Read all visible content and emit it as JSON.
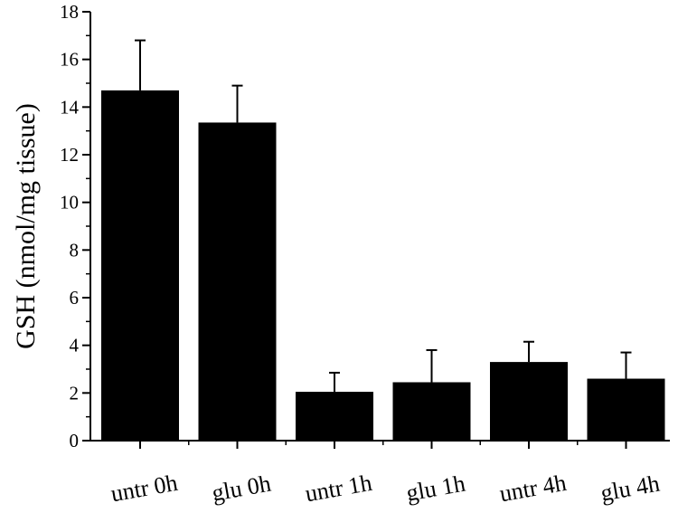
{
  "chart_data": {
    "type": "bar",
    "title": "",
    "xlabel": "",
    "ylabel": "GSH (nmol/mg tissue)",
    "categories": [
      "untr 0h",
      "glu 0h",
      "untr 1h",
      "glu 1h",
      "untr 4h",
      "glu 4h"
    ],
    "values": [
      14.7,
      13.35,
      2.05,
      2.45,
      3.3,
      2.6
    ],
    "error_plus": [
      2.1,
      1.55,
      0.8,
      1.35,
      0.85,
      1.1
    ],
    "ylim": [
      0,
      18
    ],
    "yticks": [
      0,
      2,
      4,
      6,
      8,
      10,
      12,
      14,
      16,
      18
    ],
    "ytick_labels": [
      "0",
      "2",
      "4",
      "6",
      "8",
      "10",
      "12",
      "14",
      "16",
      "18"
    ],
    "grid": false,
    "legend": "none",
    "bar_color": "#000000"
  }
}
